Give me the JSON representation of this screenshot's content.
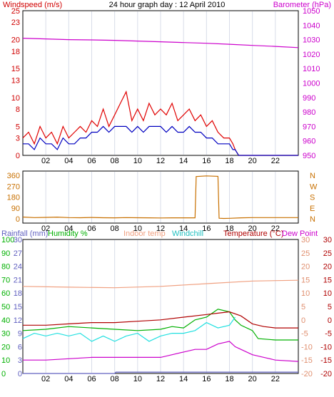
{
  "header": {
    "title": "24 hour graph day : 12 April 2010",
    "left_label": "Windspeed (m/s)",
    "right_label": "Barometer (hPa)"
  },
  "colors": {
    "background": "#ffffff",
    "plot_bg": "#ffffff",
    "grid": "#d8dce8",
    "axis": "#000000",
    "wind_left": "#d00000",
    "baro": "#cc00cc",
    "wind_gust": "#e00000",
    "wind_avg": "#0000c0",
    "wind_dir": "#c87000",
    "rain": "#6060c0",
    "humidity": "#00b000",
    "indoor": "#f0a080",
    "windchill": "#20e0e0",
    "temp": "#b00000",
    "dewpoint": "#cc00cc"
  },
  "chart_data": [
    {
      "type": "line",
      "title": "24 hour graph day : 12 April 2010",
      "x_ticks": [
        "02",
        "04",
        "06",
        "08",
        "10",
        "12",
        "14",
        "16",
        "18",
        "20",
        "22"
      ],
      "xlim": [
        0,
        24
      ],
      "left_axis": {
        "label": "Windspeed (m/s)",
        "ylim": [
          0,
          25
        ],
        "ticks": [
          0,
          3,
          5,
          8,
          10,
          13,
          15,
          18,
          20,
          23,
          25
        ]
      },
      "right_axis": {
        "label": "Barometer (hPa)",
        "ylim": [
          950,
          1050
        ],
        "ticks": [
          950,
          960,
          970,
          980,
          990,
          1000,
          1010,
          1020,
          1030,
          1040,
          1050
        ]
      },
      "series": [
        {
          "key": "gust",
          "axis": "left",
          "x": [
            0,
            0.5,
            1,
            1.5,
            2,
            2.5,
            3,
            3.5,
            4,
            4.5,
            5,
            5.5,
            6,
            6.5,
            7,
            7.5,
            8,
            8.5,
            9,
            9.5,
            10,
            10.5,
            11,
            11.5,
            12,
            12.5,
            13,
            13.5,
            14,
            14.5,
            15,
            15.5,
            16,
            16.5,
            17,
            17.5,
            18,
            18.3,
            18.5,
            18.8,
            24
          ],
          "y": [
            3,
            4,
            2,
            5,
            3,
            4,
            2,
            5,
            3,
            4,
            5,
            4,
            6,
            5,
            8,
            5,
            7,
            9,
            11,
            6,
            8,
            6,
            9,
            7,
            8,
            7,
            9,
            6,
            7,
            8,
            6,
            7,
            5,
            6,
            4,
            3,
            3,
            2,
            1,
            0,
            0
          ]
        },
        {
          "key": "average",
          "axis": "left",
          "x": [
            0,
            0.5,
            1,
            1.5,
            2,
            2.5,
            3,
            3.5,
            4,
            4.5,
            5,
            5.5,
            6,
            6.5,
            7,
            7.5,
            8,
            8.5,
            9,
            9.5,
            10,
            10.5,
            11,
            11.5,
            12,
            12.5,
            13,
            13.5,
            14,
            14.5,
            15,
            15.5,
            16,
            16.5,
            17,
            17.5,
            18,
            18.3,
            18.5,
            18.8,
            24
          ],
          "y": [
            2,
            2,
            1,
            3,
            2,
            2,
            1,
            3,
            2,
            2,
            3,
            3,
            4,
            4,
            5,
            4,
            5,
            5,
            5,
            4,
            5,
            4,
            5,
            5,
            5,
            4,
            5,
            4,
            4,
            5,
            4,
            4,
            3,
            3,
            2,
            2,
            2,
            1,
            1,
            0,
            0
          ]
        },
        {
          "key": "barometer",
          "axis": "right",
          "x": [
            0,
            2,
            4,
            6,
            8,
            10,
            12,
            14,
            16,
            18,
            20,
            22,
            24
          ],
          "y": [
            1031,
            1030.5,
            1030,
            1029.8,
            1029.5,
            1029,
            1028.5,
            1028,
            1027.5,
            1026.8,
            1026,
            1025.3,
            1024.5
          ]
        }
      ]
    },
    {
      "type": "line",
      "x_ticks": [
        "02",
        "04",
        "06",
        "08",
        "10",
        "12",
        "14",
        "16",
        "18",
        "20",
        "22"
      ],
      "xlim": [
        0,
        24
      ],
      "left_axis": {
        "ylim": [
          0,
          360
        ],
        "ticks": [
          0,
          90,
          180,
          270,
          360
        ]
      },
      "right_axis": {
        "ticks": [
          "N",
          "E",
          "S",
          "W",
          "N"
        ]
      },
      "series": [
        {
          "key": "direction",
          "x": [
            0,
            1,
            2,
            3,
            4,
            5,
            6,
            7,
            8,
            9,
            10,
            11,
            12,
            13,
            14,
            15,
            15.1,
            16,
            17,
            17.1,
            17.5,
            18,
            19,
            20,
            21,
            22,
            23,
            24
          ],
          "y": [
            15,
            10,
            12,
            14,
            10,
            9,
            11,
            9,
            8,
            10,
            9,
            8,
            7,
            8,
            8,
            8,
            350,
            355,
            352,
            5,
            3,
            4,
            8,
            10,
            10,
            10,
            10,
            10
          ]
        }
      ]
    },
    {
      "type": "line",
      "x_ticks": [
        "02",
        "04",
        "06",
        "08",
        "10",
        "12",
        "14",
        "16",
        "18",
        "20",
        "22"
      ],
      "xlim": [
        0,
        24
      ],
      "labels": [
        "Rainfall (mm)",
        "Humidity %",
        "Indoor temp",
        "Windchill",
        "Temperature (°C)",
        "Dew Point"
      ],
      "rain_axis": {
        "label": "Rainfall (mm)",
        "ylim": [
          0,
          30
        ],
        "ticks": [
          0,
          3,
          6,
          9,
          12,
          15,
          18,
          21,
          24,
          27,
          30
        ]
      },
      "humidity_axis": {
        "label": "Humidity %",
        "ylim": [
          0,
          100
        ],
        "ticks": [
          0,
          10,
          20,
          30,
          40,
          50,
          60,
          70,
          80,
          90,
          100
        ]
      },
      "temp_axis": {
        "label": "Temperature (°C)",
        "ylim": [
          -20,
          30
        ],
        "ticks": [
          -20,
          -15,
          -10,
          -5,
          0,
          5,
          10,
          15,
          20,
          25,
          30
        ]
      },
      "series": [
        {
          "key": "rain",
          "axis": "rain",
          "x": [
            0,
            8,
            8.1,
            24
          ],
          "y": [
            0,
            0,
            0.3,
            0.3
          ]
        },
        {
          "key": "humidity",
          "axis": "humidity",
          "x": [
            0,
            2,
            4,
            6,
            8,
            10,
            12,
            13,
            14,
            15,
            16,
            17,
            18,
            18.5,
            19,
            20,
            20.5,
            22,
            24
          ],
          "y": [
            32,
            33,
            35,
            34,
            33,
            32,
            33,
            35,
            34,
            40,
            42,
            48,
            46,
            40,
            36,
            32,
            26,
            25,
            25
          ]
        },
        {
          "key": "indoor",
          "axis": "temp",
          "x": [
            0,
            4,
            8,
            12,
            16,
            20,
            24
          ],
          "y": [
            12.5,
            12.2,
            12.0,
            12.5,
            13.5,
            14.5,
            14.8
          ]
        },
        {
          "key": "windchill",
          "axis": "temp",
          "x": [
            0,
            1,
            2,
            3,
            4,
            5,
            6,
            7,
            8,
            9,
            10,
            11,
            12,
            13,
            14,
            15,
            16,
            17,
            18,
            18.5
          ],
          "y": [
            -7,
            -5,
            -6,
            -5,
            -6,
            -5,
            -8,
            -6,
            -8,
            -6,
            -5,
            -8,
            -6,
            -5,
            -5,
            -4,
            -1,
            -3,
            -2,
            1
          ]
        },
        {
          "key": "temperature",
          "axis": "temp",
          "x": [
            0,
            2,
            4,
            6,
            8,
            10,
            12,
            14,
            16,
            17,
            18,
            19,
            20,
            21,
            22,
            24
          ],
          "y": [
            -2,
            -2,
            -1.5,
            -1,
            -1,
            -0.5,
            0,
            1,
            2,
            2.5,
            3,
            1.5,
            -1.5,
            -2.5,
            -3,
            -3
          ]
        },
        {
          "key": "dewpoint",
          "axis": "temp",
          "x": [
            0,
            2,
            4,
            6,
            8,
            10,
            12,
            13,
            14,
            15,
            16,
            17,
            18,
            18.5,
            19,
            20,
            21,
            22,
            24
          ],
          "y": [
            -15,
            -15,
            -14.5,
            -14,
            -14,
            -14,
            -14,
            -13,
            -12,
            -11,
            -11,
            -9,
            -8,
            -10,
            -11,
            -13,
            -14,
            -15,
            -15.5
          ]
        }
      ]
    }
  ]
}
